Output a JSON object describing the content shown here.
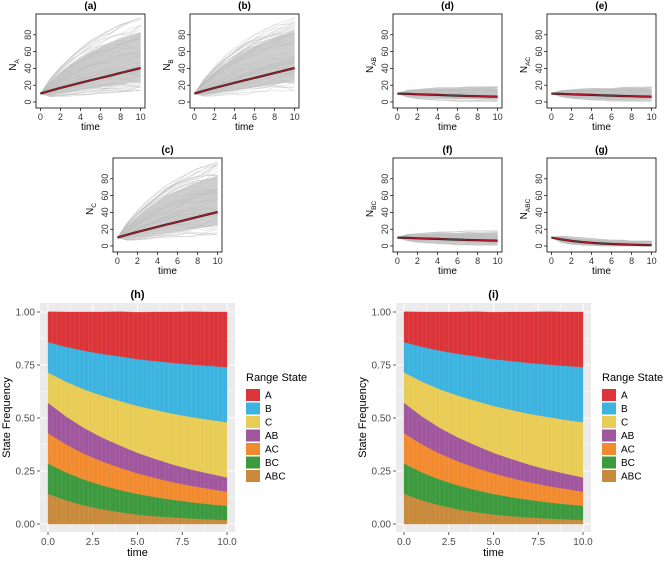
{
  "chart_data": [
    {
      "id": "a",
      "type": "line",
      "title": "(a)",
      "ylabel_main": "N",
      "ylabel_sub": "A",
      "xlabel": "time",
      "xlim": [
        0,
        10
      ],
      "ylim": [
        0,
        100
      ],
      "xticks": [
        "0",
        "2",
        "4",
        "6",
        "8",
        "10"
      ],
      "yticks": [
        "0",
        "20",
        "40",
        "60",
        "80"
      ],
      "x": [
        0,
        1,
        2,
        3,
        4,
        5,
        6,
        7,
        8,
        9,
        10
      ],
      "series": [
        {
          "name": "mean",
          "values": [
            10,
            13.5,
            16.8,
            19.8,
            22.8,
            25.8,
            28.7,
            31.6,
            34.6,
            37.5,
            40.5
          ]
        }
      ],
      "spread": {
        "upper": [
          10,
          28,
          42,
          54,
          64,
          73,
          80,
          86,
          92,
          96,
          100
        ],
        "lower": [
          10,
          6,
          6,
          7,
          8,
          9,
          10,
          11,
          12,
          13,
          14
        ]
      }
    },
    {
      "id": "b",
      "type": "line",
      "title": "(b)",
      "ylabel_main": "N",
      "ylabel_sub": "B",
      "xlabel": "time",
      "xlim": [
        0,
        10
      ],
      "ylim": [
        0,
        100
      ],
      "xticks": [
        "0",
        "2",
        "4",
        "6",
        "8",
        "10"
      ],
      "yticks": [
        "0",
        "20",
        "40",
        "60",
        "80"
      ],
      "x": [
        0,
        1,
        2,
        3,
        4,
        5,
        6,
        7,
        8,
        9,
        10
      ],
      "series": [
        {
          "name": "mean",
          "values": [
            10,
            13.5,
            16.8,
            19.8,
            22.8,
            25.8,
            28.7,
            31.6,
            34.6,
            37.5,
            40.5
          ]
        }
      ],
      "spread": {
        "upper": [
          10,
          28,
          42,
          54,
          64,
          73,
          80,
          86,
          92,
          96,
          100
        ],
        "lower": [
          10,
          6,
          6,
          7,
          8,
          9,
          10,
          11,
          12,
          13,
          14
        ]
      }
    },
    {
      "id": "c",
      "type": "line",
      "title": "(c)",
      "ylabel_main": "N",
      "ylabel_sub": "C",
      "xlabel": "time",
      "xlim": [
        0,
        10
      ],
      "ylim": [
        0,
        100
      ],
      "xticks": [
        "0",
        "2",
        "4",
        "6",
        "8",
        "10"
      ],
      "yticks": [
        "0",
        "20",
        "40",
        "60",
        "80"
      ],
      "x": [
        0,
        1,
        2,
        3,
        4,
        5,
        6,
        7,
        8,
        9,
        10
      ],
      "series": [
        {
          "name": "mean",
          "values": [
            10,
            13.5,
            16.8,
            19.8,
            22.8,
            25.8,
            28.7,
            31.6,
            34.6,
            37.5,
            40.5
          ]
        }
      ],
      "spread": {
        "upper": [
          10,
          28,
          42,
          54,
          64,
          73,
          80,
          86,
          92,
          96,
          100
        ],
        "lower": [
          10,
          6,
          6,
          7,
          8,
          9,
          10,
          11,
          12,
          13,
          14
        ]
      }
    },
    {
      "id": "d",
      "type": "line",
      "title": "(d)",
      "ylabel_main": "N",
      "ylabel_sub": "AB",
      "xlabel": "time",
      "xlim": [
        0,
        10
      ],
      "ylim": [
        0,
        100
      ],
      "xticks": [
        "0",
        "2",
        "4",
        "6",
        "8",
        "10"
      ],
      "yticks": [
        "0",
        "20",
        "40",
        "60",
        "80"
      ],
      "x": [
        0,
        1,
        2,
        3,
        4,
        5,
        6,
        7,
        8,
        9,
        10
      ],
      "series": [
        {
          "name": "mean",
          "values": [
            10,
            9.6,
            9.2,
            8.8,
            8.4,
            8.0,
            7.6,
            7.2,
            6.9,
            6.6,
            6.3
          ]
        }
      ],
      "spread": {
        "upper": [
          10,
          14,
          15,
          16,
          17,
          17,
          17,
          18,
          18,
          18,
          18
        ],
        "lower": [
          10,
          6,
          4,
          3,
          2,
          2,
          1,
          1,
          1,
          1,
          1
        ]
      }
    },
    {
      "id": "e",
      "type": "line",
      "title": "(e)",
      "ylabel_main": "N",
      "ylabel_sub": "AC",
      "xlabel": "time",
      "xlim": [
        0,
        10
      ],
      "ylim": [
        0,
        100
      ],
      "xticks": [
        "0",
        "2",
        "4",
        "6",
        "8",
        "10"
      ],
      "yticks": [
        "0",
        "20",
        "40",
        "60",
        "80"
      ],
      "x": [
        0,
        1,
        2,
        3,
        4,
        5,
        6,
        7,
        8,
        9,
        10
      ],
      "series": [
        {
          "name": "mean",
          "values": [
            10,
            9.6,
            9.2,
            8.8,
            8.4,
            8.0,
            7.6,
            7.2,
            6.9,
            6.6,
            6.3
          ]
        }
      ],
      "spread": {
        "upper": [
          10,
          14,
          15,
          16,
          17,
          17,
          17,
          18,
          18,
          18,
          18
        ],
        "lower": [
          10,
          6,
          4,
          3,
          2,
          2,
          1,
          1,
          1,
          1,
          1
        ]
      }
    },
    {
      "id": "f",
      "type": "line",
      "title": "(f)",
      "ylabel_main": "N",
      "ylabel_sub": "BC",
      "xlabel": "time",
      "xlim": [
        0,
        10
      ],
      "ylim": [
        0,
        100
      ],
      "xticks": [
        "0",
        "2",
        "4",
        "6",
        "8",
        "10"
      ],
      "yticks": [
        "0",
        "20",
        "40",
        "60",
        "80"
      ],
      "x": [
        0,
        1,
        2,
        3,
        4,
        5,
        6,
        7,
        8,
        9,
        10
      ],
      "series": [
        {
          "name": "mean",
          "values": [
            10,
            9.6,
            9.2,
            8.8,
            8.4,
            8.0,
            7.6,
            7.2,
            6.9,
            6.6,
            6.3
          ]
        }
      ],
      "spread": {
        "upper": [
          10,
          14,
          15,
          16,
          17,
          17,
          17,
          18,
          18,
          18,
          18
        ],
        "lower": [
          10,
          6,
          4,
          3,
          2,
          2,
          1,
          1,
          1,
          1,
          1
        ]
      }
    },
    {
      "id": "g",
      "type": "line",
      "title": "(g)",
      "ylabel_main": "N",
      "ylabel_sub": "ABC",
      "xlabel": "time",
      "xlim": [
        0,
        10
      ],
      "ylim": [
        0,
        100
      ],
      "xticks": [
        "0",
        "2",
        "4",
        "6",
        "8",
        "10"
      ],
      "yticks": [
        "0",
        "20",
        "40",
        "60",
        "80"
      ],
      "x": [
        0,
        1,
        2,
        3,
        4,
        5,
        6,
        7,
        8,
        9,
        10
      ],
      "series": [
        {
          "name": "mean",
          "values": [
            10,
            7.8,
            6.1,
            4.8,
            3.8,
            3.0,
            2.4,
            1.9,
            1.5,
            1.2,
            1.0
          ]
        }
      ],
      "spread": {
        "upper": [
          10,
          12,
          11,
          10,
          9,
          8,
          7,
          7,
          6,
          6,
          6
        ],
        "lower": [
          10,
          4,
          2,
          1,
          0.5,
          0,
          0,
          0,
          0,
          0,
          0
        ]
      }
    },
    {
      "id": "h",
      "type": "area",
      "title": "(h)",
      "xlabel": "time",
      "ylabel": "State Frequency",
      "xlim": [
        0,
        10
      ],
      "ylim": [
        0,
        1
      ],
      "xticks": [
        "0.0",
        "2.5",
        "5.0",
        "7.5",
        "10.0"
      ],
      "yticks": [
        "0.00",
        "0.25",
        "0.50",
        "0.75",
        "1.00"
      ],
      "legend_title": "Range State",
      "x": [
        0,
        1,
        2,
        3,
        4,
        5,
        6,
        7,
        8,
        9,
        10
      ],
      "series": [
        {
          "name": "ABC",
          "color": "#C98A3C",
          "values": [
            0.143,
            0.112,
            0.088,
            0.07,
            0.056,
            0.045,
            0.037,
            0.031,
            0.026,
            0.022,
            0.019
          ]
        },
        {
          "name": "BC",
          "color": "#3D9A3F",
          "values": [
            0.143,
            0.132,
            0.122,
            0.113,
            0.105,
            0.097,
            0.09,
            0.083,
            0.077,
            0.072,
            0.067
          ]
        },
        {
          "name": "AC",
          "color": "#F28B30",
          "values": [
            0.143,
            0.132,
            0.122,
            0.113,
            0.105,
            0.097,
            0.09,
            0.083,
            0.077,
            0.072,
            0.067
          ]
        },
        {
          "name": "AB",
          "color": "#A0579E",
          "values": [
            0.143,
            0.132,
            0.122,
            0.113,
            0.105,
            0.097,
            0.09,
            0.083,
            0.077,
            0.072,
            0.067
          ]
        },
        {
          "name": "C",
          "color": "#E8CC55",
          "values": [
            0.143,
            0.164,
            0.182,
            0.197,
            0.21,
            0.221,
            0.231,
            0.24,
            0.248,
            0.254,
            0.26
          ]
        },
        {
          "name": "B",
          "color": "#3DB3E0",
          "values": [
            0.143,
            0.164,
            0.182,
            0.197,
            0.21,
            0.221,
            0.231,
            0.24,
            0.248,
            0.254,
            0.26
          ]
        },
        {
          "name": "A",
          "color": "#DC3539",
          "values": [
            0.143,
            0.164,
            0.182,
            0.197,
            0.21,
            0.221,
            0.231,
            0.24,
            0.248,
            0.254,
            0.26
          ]
        }
      ],
      "legend_order": [
        "A",
        "B",
        "C",
        "AB",
        "AC",
        "BC",
        "ABC"
      ]
    },
    {
      "id": "i",
      "type": "area",
      "title": "(i)",
      "xlabel": "time",
      "ylabel": "State Frequency",
      "xlim": [
        0,
        10
      ],
      "ylim": [
        0,
        1
      ],
      "xticks": [
        "0.0",
        "2.5",
        "5.0",
        "7.5",
        "10.0"
      ],
      "yticks": [
        "0.00",
        "0.25",
        "0.50",
        "0.75",
        "1.00"
      ],
      "legend_title": "Range State",
      "x": [
        0,
        1,
        2,
        3,
        4,
        5,
        6,
        7,
        8,
        9,
        10
      ],
      "series": [
        {
          "name": "ABC",
          "color": "#C98A3C",
          "values": [
            0.143,
            0.112,
            0.088,
            0.07,
            0.056,
            0.045,
            0.037,
            0.031,
            0.026,
            0.022,
            0.019
          ]
        },
        {
          "name": "BC",
          "color": "#3D9A3F",
          "values": [
            0.143,
            0.132,
            0.122,
            0.113,
            0.105,
            0.097,
            0.09,
            0.083,
            0.077,
            0.072,
            0.067
          ]
        },
        {
          "name": "AC",
          "color": "#F28B30",
          "values": [
            0.143,
            0.132,
            0.122,
            0.113,
            0.105,
            0.097,
            0.09,
            0.083,
            0.077,
            0.072,
            0.067
          ]
        },
        {
          "name": "AB",
          "color": "#A0579E",
          "values": [
            0.143,
            0.132,
            0.122,
            0.113,
            0.105,
            0.097,
            0.09,
            0.083,
            0.077,
            0.072,
            0.067
          ]
        },
        {
          "name": "C",
          "color": "#E8CC55",
          "values": [
            0.143,
            0.164,
            0.182,
            0.197,
            0.21,
            0.221,
            0.231,
            0.24,
            0.248,
            0.254,
            0.26
          ]
        },
        {
          "name": "B",
          "color": "#3DB3E0",
          "values": [
            0.143,
            0.164,
            0.182,
            0.197,
            0.21,
            0.221,
            0.231,
            0.24,
            0.248,
            0.254,
            0.26
          ]
        },
        {
          "name": "A",
          "color": "#DC3539",
          "values": [
            0.143,
            0.164,
            0.182,
            0.197,
            0.21,
            0.221,
            0.231,
            0.24,
            0.248,
            0.254,
            0.26
          ]
        }
      ],
      "legend_order": [
        "A",
        "B",
        "C",
        "AB",
        "AC",
        "BC",
        "ABC"
      ]
    }
  ],
  "colors": {
    "mean_line": "#B2182B",
    "spread": "#BDBDBD",
    "panel_bg": "#EBEBEB",
    "grid": "#FFFFFF"
  }
}
